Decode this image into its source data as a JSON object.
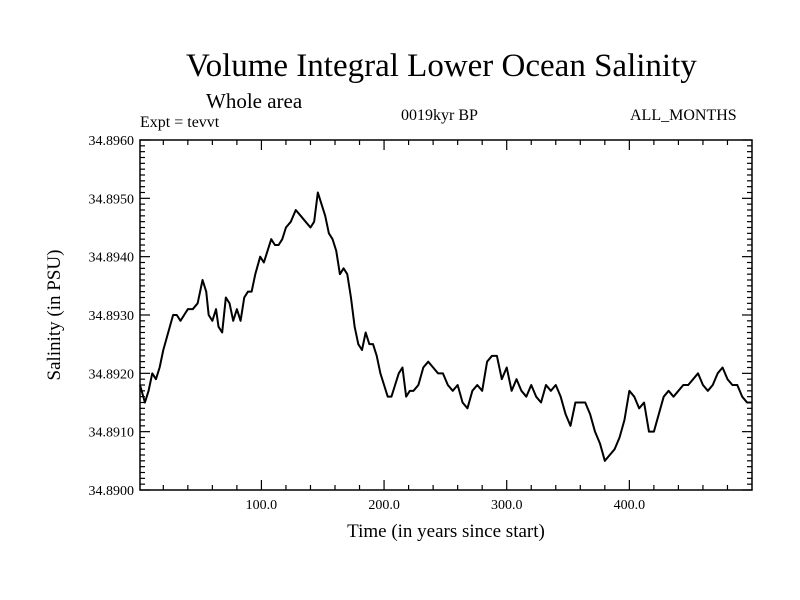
{
  "chart_data": {
    "type": "line",
    "title": "Volume Integral Lower Ocean Salinity",
    "subtitle": "Whole area",
    "expt_label": "Expt = tevvt",
    "period_label": "0019kyr BP",
    "months_label": "ALL_MONTHS",
    "xlabel": "Time (in years since start)",
    "ylabel": "Salinity (in PSU)",
    "xlim": [
      1,
      500
    ],
    "ylim": [
      34.89,
      34.896
    ],
    "xticks": [
      {
        "value": 100,
        "label": "100.0"
      },
      {
        "value": 200,
        "label": "200.0"
      },
      {
        "value": 300,
        "label": "300.0"
      },
      {
        "value": 400,
        "label": "400.0"
      }
    ],
    "yticks": [
      {
        "value": 34.89,
        "label": "34.8900"
      },
      {
        "value": 34.891,
        "label": "34.8910"
      },
      {
        "value": 34.892,
        "label": "34.8920"
      },
      {
        "value": 34.893,
        "label": "34.8930"
      },
      {
        "value": 34.894,
        "label": "34.8940"
      },
      {
        "value": 34.895,
        "label": "34.8950"
      },
      {
        "value": 34.896,
        "label": "34.8960"
      }
    ],
    "series": [
      {
        "line_color": "#000000",
        "x": [
          1,
          5,
          8,
          11,
          14,
          17,
          20,
          24,
          28,
          31,
          34,
          37,
          40,
          44,
          48,
          52,
          55,
          57,
          60,
          63,
          65,
          68,
          71,
          74,
          77,
          80,
          83,
          86,
          89,
          92,
          95,
          99,
          102,
          105,
          108,
          111,
          114,
          117,
          120,
          124,
          128,
          132,
          136,
          140,
          143,
          146,
          149,
          152,
          155,
          158,
          161,
          164,
          167,
          170,
          173,
          176,
          179,
          182,
          185,
          188,
          191,
          194,
          197,
          200,
          203,
          206,
          209,
          212,
          215,
          218,
          221,
          224,
          228,
          232,
          236,
          240,
          244,
          248,
          252,
          256,
          260,
          264,
          268,
          272,
          276,
          280,
          284,
          288,
          292,
          296,
          300,
          304,
          308,
          312,
          316,
          320,
          324,
          328,
          332,
          336,
          340,
          344,
          348,
          352,
          356,
          360,
          364,
          368,
          372,
          376,
          380,
          384,
          388,
          392,
          396,
          400,
          404,
          408,
          412,
          416,
          420,
          424,
          428,
          432,
          436,
          440,
          444,
          448,
          452,
          456,
          460,
          464,
          468,
          472,
          476,
          480,
          484,
          488,
          492,
          496,
          500
        ],
        "y": [
          34.8918,
          34.8915,
          34.8917,
          34.892,
          34.8919,
          34.8921,
          34.8924,
          34.8927,
          34.893,
          34.893,
          34.8929,
          34.893,
          34.8931,
          34.8931,
          34.8932,
          34.8936,
          34.8934,
          34.893,
          34.8929,
          34.8931,
          34.8928,
          34.8927,
          34.8933,
          34.8932,
          34.8929,
          34.8931,
          34.8929,
          34.8933,
          34.8934,
          34.8934,
          34.8937,
          34.894,
          34.8939,
          34.8941,
          34.8943,
          34.8942,
          34.8942,
          34.8943,
          34.8945,
          34.8946,
          34.8948,
          34.8947,
          34.8946,
          34.8945,
          34.8946,
          34.8951,
          34.8949,
          34.8947,
          34.8944,
          34.8943,
          34.8941,
          34.8937,
          34.8938,
          34.8937,
          34.8933,
          34.8928,
          34.8925,
          34.8924,
          34.8927,
          34.8925,
          34.8925,
          34.8923,
          34.892,
          34.8918,
          34.8916,
          34.8916,
          34.8918,
          34.892,
          34.8921,
          34.8916,
          34.8917,
          34.8917,
          34.8918,
          34.8921,
          34.8922,
          34.8921,
          34.892,
          34.892,
          34.8918,
          34.8917,
          34.8918,
          34.8915,
          34.8914,
          34.8917,
          34.8918,
          34.8917,
          34.8922,
          34.8923,
          34.8923,
          34.8919,
          34.8921,
          34.8917,
          34.8919,
          34.8917,
          34.8916,
          34.8918,
          34.8916,
          34.8915,
          34.8918,
          34.8917,
          34.8918,
          34.8916,
          34.8913,
          34.8911,
          34.8915,
          34.8915,
          34.8915,
          34.8913,
          34.891,
          34.8908,
          34.8905,
          34.8906,
          34.8907,
          34.8909,
          34.8912,
          34.8917,
          34.8916,
          34.8914,
          34.8915,
          34.891,
          34.891,
          34.8913,
          34.8916,
          34.8917,
          34.8916,
          34.8917,
          34.8918,
          34.8918,
          34.8919,
          34.892,
          34.8918,
          34.8917,
          34.8918,
          34.892,
          34.8921,
          34.8919,
          34.8918,
          34.8918,
          34.8916,
          34.8915,
          34.8915
        ]
      }
    ]
  }
}
